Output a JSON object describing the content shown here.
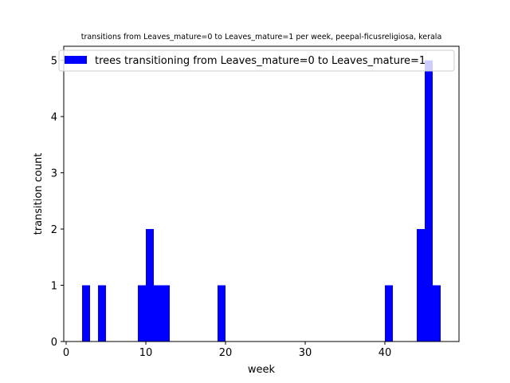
{
  "chart_data": {
    "type": "bar",
    "title": "transitions from Leaves_mature=0 to Leaves_mature=1 per week, peepal-ficusreligiosa, kerala",
    "xlabel": "week",
    "ylabel": "transition count",
    "xlim": [
      -0.3,
      49.3
    ],
    "ylim": [
      0,
      5.25
    ],
    "xticks": [
      0,
      10,
      20,
      30,
      40
    ],
    "yticks": [
      0,
      1,
      2,
      3,
      4,
      5
    ],
    "bin_width": 1,
    "series": [
      {
        "name": "trees transitioning from Leaves_mature=0 to Leaves_mature=1",
        "color": "#0000ff",
        "bins": [
          {
            "week": 2,
            "count": 1
          },
          {
            "week": 4,
            "count": 1
          },
          {
            "week": 9,
            "count": 1
          },
          {
            "week": 10,
            "count": 2
          },
          {
            "week": 11,
            "count": 1
          },
          {
            "week": 12,
            "count": 1
          },
          {
            "week": 19,
            "count": 1
          },
          {
            "week": 40,
            "count": 1
          },
          {
            "week": 44,
            "count": 2
          },
          {
            "week": 45,
            "count": 5
          },
          {
            "week": 46,
            "count": 1
          }
        ]
      }
    ],
    "legend_position": "upper-left",
    "grid": false
  }
}
